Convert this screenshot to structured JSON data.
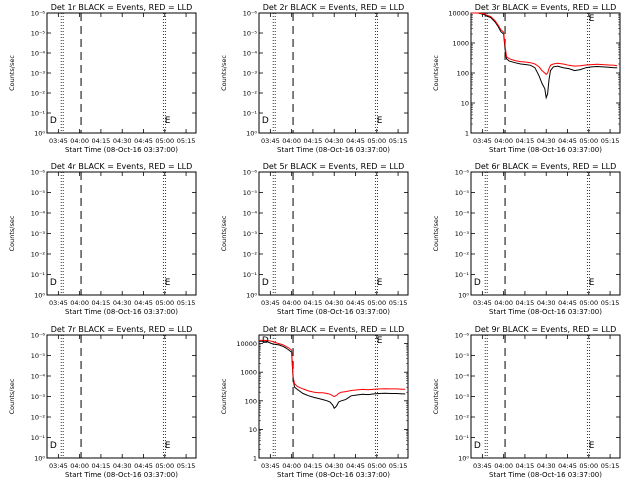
{
  "start_time_label": "Start Time (08-Oct-16 03:37:00)",
  "ylabel": "Counts/sec",
  "x_ticks": [
    "03:45",
    "04:00",
    "04:15",
    "04:30",
    "04:45",
    "05:00",
    "05:15"
  ],
  "x_tick_minutes": [
    225,
    240,
    255,
    270,
    285,
    300,
    315
  ],
  "xlim_minutes": [
    217,
    322
  ],
  "vlines": {
    "dotted_minutes": [
      227,
      299
    ],
    "dashed_minutes": 241
  },
  "colors": {
    "events": "#000000",
    "lld": "#ff0000"
  },
  "chart_data": [
    {
      "type": "line",
      "title": "Det 1r BLACK = Events, RED = LLD",
      "scale": "log-fake",
      "ytick_labels": [
        "10⁰",
        "10⁻¹",
        "10⁻²",
        "10⁻³",
        "10⁻⁴",
        "10⁻⁵",
        "10⁻⁶"
      ],
      "markers": [
        {
          "label": "D",
          "x_min": 219
        },
        {
          "label": "E",
          "x_min": 300
        }
      ],
      "series": []
    },
    {
      "type": "line",
      "title": "Det 2r BLACK = Events, RED = LLD",
      "scale": "log-fake",
      "ytick_labels": [
        "10⁰",
        "10⁻¹",
        "10⁻²",
        "10⁻³",
        "10⁻⁴",
        "10⁻⁵",
        "10⁻⁶"
      ],
      "markers": [
        {
          "label": "D",
          "x_min": 219
        },
        {
          "label": "E",
          "x_min": 300
        }
      ],
      "series": []
    },
    {
      "type": "line",
      "title": "Det 3r BLACK = Events, RED = LLD",
      "scale": "log",
      "ylim": [
        1,
        10000
      ],
      "ytick_labels": [
        "1",
        "10",
        "100",
        "1000",
        "10000"
      ],
      "ytick_values": [
        1,
        10,
        100,
        1000,
        10000
      ],
      "markers": [
        {
          "label": "E",
          "x_min": 300
        }
      ],
      "series": [
        {
          "color": "#000000",
          "x": [
            217,
            222,
            226,
            228,
            231,
            234,
            236,
            238,
            240,
            241,
            242,
            244,
            248,
            252,
            256,
            259,
            262,
            265,
            267,
            269,
            270,
            271,
            272,
            273,
            275,
            278,
            282,
            286,
            290,
            294,
            298,
            302,
            306,
            310,
            314,
            318,
            320
          ],
          "y": [
            10000,
            10000,
            9000,
            8000,
            7000,
            5000,
            3600,
            2400,
            2000,
            600,
            300,
            250,
            220,
            200,
            190,
            180,
            150,
            80,
            45,
            30,
            15,
            20,
            60,
            120,
            160,
            170,
            150,
            140,
            120,
            130,
            150,
            160,
            165,
            160,
            155,
            150,
            150
          ]
        },
        {
          "color": "#ff0000",
          "x": [
            217,
            222,
            226,
            228,
            231,
            234,
            236,
            238,
            240,
            241,
            242,
            244,
            248,
            252,
            256,
            259,
            262,
            265,
            267,
            269,
            270,
            271,
            272,
            273,
            275,
            278,
            282,
            286,
            290,
            294,
            298,
            302,
            306,
            310,
            314,
            318,
            320
          ],
          "y": [
            10000,
            10000,
            9500,
            8500,
            7500,
            5500,
            4000,
            2800,
            2300,
            800,
            350,
            300,
            260,
            240,
            230,
            220,
            200,
            160,
            120,
            100,
            90,
            100,
            140,
            180,
            200,
            210,
            200,
            180,
            170,
            175,
            185,
            190,
            195,
            190,
            185,
            180,
            175
          ]
        }
      ]
    },
    {
      "type": "line",
      "title": "Det 4r BLACK = Events, RED = LLD",
      "scale": "log-fake",
      "ytick_labels": [
        "10⁰",
        "10⁻¹",
        "10⁻²",
        "10⁻³",
        "10⁻⁴",
        "10⁻⁵",
        "10⁻⁶"
      ],
      "markers": [
        {
          "label": "D",
          "x_min": 219
        },
        {
          "label": "E",
          "x_min": 300
        }
      ],
      "series": []
    },
    {
      "type": "line",
      "title": "Det 5r BLACK = Events, RED = LLD",
      "scale": "log-fake",
      "ytick_labels": [
        "10⁰",
        "10⁻¹",
        "10⁻²",
        "10⁻³",
        "10⁻⁴",
        "10⁻⁵",
        "10⁻⁶"
      ],
      "markers": [
        {
          "label": "D",
          "x_min": 219
        },
        {
          "label": "E",
          "x_min": 300
        }
      ],
      "series": []
    },
    {
      "type": "line",
      "title": "Det 6r BLACK = Events, RED = LLD",
      "scale": "log-fake",
      "ytick_labels": [
        "10⁰",
        "10⁻¹",
        "10⁻²",
        "10⁻³",
        "10⁻⁴",
        "10⁻⁵",
        "10⁻⁶"
      ],
      "markers": [
        {
          "label": "D",
          "x_min": 219
        },
        {
          "label": "E",
          "x_min": 300
        }
      ],
      "series": []
    },
    {
      "type": "line",
      "title": "Det 7r BLACK = Events, RED = LLD",
      "scale": "log-fake",
      "ytick_labels": [
        "10⁰",
        "10⁻¹",
        "10⁻²",
        "10⁻³",
        "10⁻⁴",
        "10⁻⁵",
        "10⁻⁶"
      ],
      "markers": [
        {
          "label": "D",
          "x_min": 219
        },
        {
          "label": "E",
          "x_min": 300
        }
      ],
      "series": []
    },
    {
      "type": "line",
      "title": "Det 8r BLACK = Events, RED = LLD",
      "scale": "log",
      "ylim": [
        1,
        20000
      ],
      "ytick_labels": [
        "10000",
        "1000",
        "100",
        "10",
        "1"
      ],
      "ytick_values": [
        10000,
        1000,
        100,
        10,
        1
      ],
      "markers": [
        {
          "label": "D",
          "x_min": 219
        },
        {
          "label": "E",
          "x_min": 300
        }
      ],
      "series": [
        {
          "color": "#000000",
          "x": [
            217,
            222,
            226,
            228,
            231,
            234,
            236,
            238,
            240,
            241,
            242,
            244,
            248,
            252,
            256,
            259,
            262,
            265,
            267,
            269,
            270,
            271,
            272,
            273,
            275,
            278,
            282,
            286,
            290,
            294,
            298,
            302,
            306,
            310,
            314,
            318,
            320
          ],
          "y": [
            12000,
            12000,
            10000,
            9500,
            9000,
            8000,
            7000,
            6000,
            5000,
            600,
            300,
            250,
            180,
            150,
            130,
            120,
            110,
            100,
            90,
            70,
            55,
            60,
            70,
            90,
            100,
            110,
            150,
            160,
            170,
            165,
            175,
            180,
            185,
            180,
            180,
            175,
            175
          ]
        },
        {
          "color": "#ff0000",
          "x": [
            217,
            222,
            226,
            228,
            231,
            234,
            236,
            238,
            240,
            241,
            242,
            244,
            248,
            252,
            256,
            259,
            262,
            265,
            267,
            269,
            270,
            271,
            272,
            273,
            275,
            278,
            282,
            286,
            290,
            294,
            298,
            302,
            306,
            310,
            314,
            318,
            320
          ],
          "y": [
            13000,
            13000,
            12000,
            11000,
            10000,
            9000,
            8000,
            7000,
            6000,
            700,
            400,
            320,
            260,
            220,
            200,
            190,
            190,
            180,
            170,
            150,
            140,
            150,
            160,
            180,
            200,
            210,
            230,
            240,
            250,
            245,
            255,
            260,
            265,
            260,
            260,
            255,
            255
          ]
        }
      ]
    },
    {
      "type": "line",
      "title": "Det 9r BLACK = Events, RED = LLD",
      "scale": "log-fake",
      "ytick_labels": [
        "10⁰",
        "10⁻¹",
        "10⁻²",
        "10⁻³",
        "10⁻⁴",
        "10⁻⁵",
        "10⁻⁶"
      ],
      "markers": [
        {
          "label": "D",
          "x_min": 219
        },
        {
          "label": "E",
          "x_min": 300
        }
      ],
      "series": []
    }
  ]
}
